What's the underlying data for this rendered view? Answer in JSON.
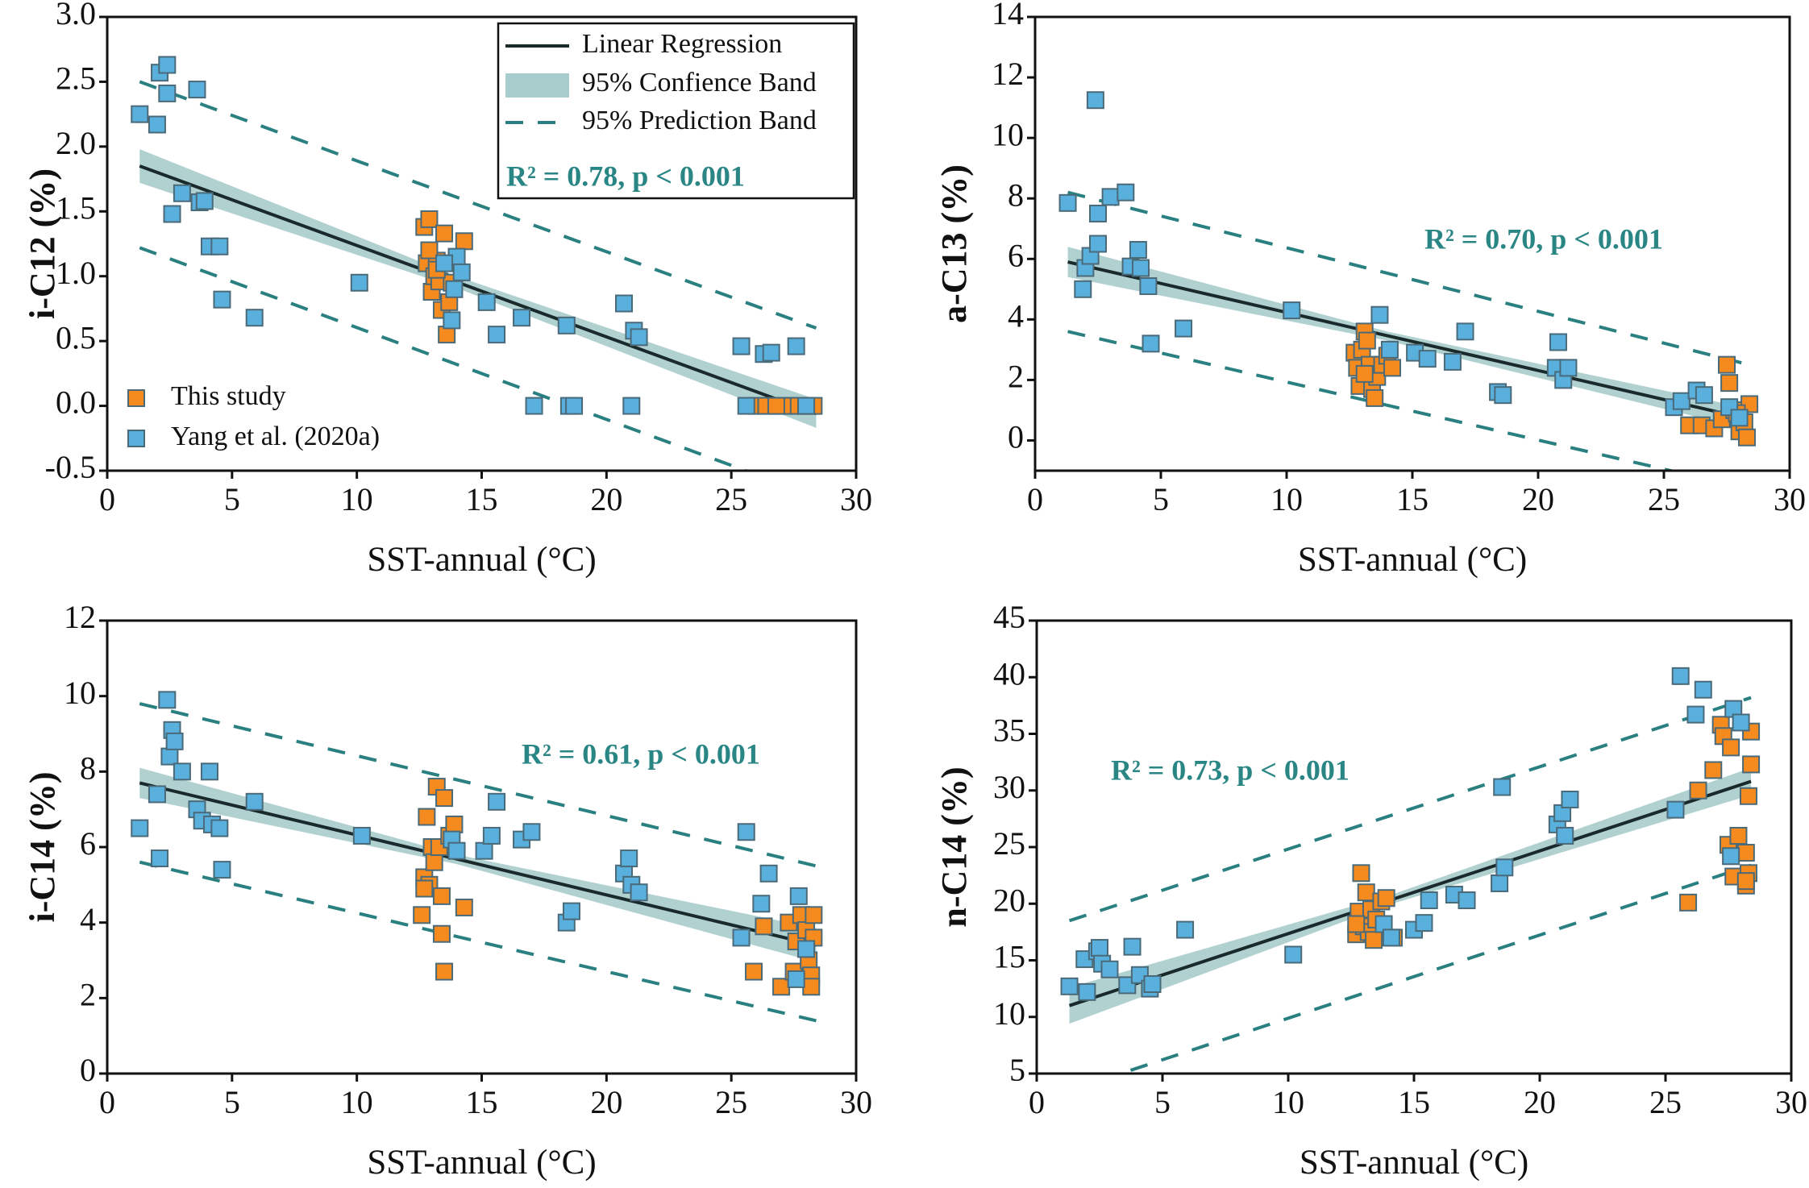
{
  "chart_data": [
    {
      "type": "scatter",
      "xlabel": "SST-annual (°C)",
      "ylabel": "i-C12 (%)",
      "annotation": "R² = 0.78, p < 0.001",
      "xlim": [
        0,
        30
      ],
      "xticks": [
        0,
        5,
        10,
        15,
        20,
        25,
        30
      ],
      "ylim": [
        -0.5,
        3.0
      ],
      "yticks": [
        -0.5,
        {
          "value": 0,
          "label": "0.0"
        },
        0.5,
        {
          "value": 1,
          "label": "1.0"
        },
        1.5,
        {
          "value": 2,
          "label": "2.0"
        },
        2.5,
        {
          "value": 3,
          "label": "3.0"
        }
      ],
      "series": [
        {
          "name": "This study",
          "color": "#f58b1f",
          "x": [
            12.7,
            12.9,
            12.8,
            13.0,
            13.1,
            13.2,
            13.3,
            13.4,
            13.5,
            13.6,
            13.7,
            13.8,
            14.3,
            12.9,
            13.2,
            26.0,
            26.4,
            27.1,
            27.4,
            27.7,
            28.0,
            28.3,
            26.8
          ],
          "values": [
            1.38,
            1.44,
            1.1,
            0.88,
            1.0,
            1.12,
            0.96,
            0.74,
            1.33,
            0.55,
            0.8,
            0.95,
            1.27,
            1.2,
            1.05,
            0,
            0,
            0,
            0,
            0,
            0,
            0,
            0
          ]
        },
        {
          "name": "Yang et al. (2020a)",
          "color": "#5ab0dc",
          "x": [
            1.3,
            2.0,
            2.1,
            2.4,
            2.4,
            3.6,
            2.6,
            3.0,
            3.7,
            3.9,
            4.1,
            4.5,
            4.6,
            5.9,
            10.1,
            13.8,
            14.0,
            14.2,
            15.2,
            15.6,
            16.6,
            17.1,
            18.4,
            18.5,
            18.7,
            20.7,
            21.0,
            21.1,
            21.3,
            25.4,
            25.6,
            26.3,
            26.6,
            27.6,
            28.0,
            13.5,
            13.9
          ],
          "values": [
            2.25,
            2.17,
            2.57,
            2.63,
            2.41,
            2.44,
            1.48,
            1.64,
            1.57,
            1.58,
            1.23,
            1.23,
            0.82,
            0.68,
            0.95,
            0.66,
            1.15,
            1.03,
            0.8,
            0.55,
            0.68,
            0,
            0.62,
            0,
            0,
            0.79,
            0,
            0.58,
            0.53,
            0.46,
            0,
            0.4,
            0.41,
            0.46,
            0,
            1.1,
            0.9
          ]
        }
      ],
      "regression": {
        "name": "Linear Regression",
        "color": "#1a2a2a",
        "x": [
          1.3,
          28.4
        ],
        "values": [
          1.85,
          -0.06
        ]
      },
      "confidence_band": {
        "name": "95% Confience Band",
        "color": "#a9cccc",
        "x": [
          1.3,
          14,
          28.4
        ],
        "lower": [
          1.72,
          0.91,
          -0.17
        ],
        "upper": [
          1.98,
          1.0,
          0.05
        ]
      },
      "prediction_band": {
        "name": "95% Prediction Band",
        "color": "#2a8080",
        "x": [
          1.3,
          28.4
        ],
        "lower": [
          1.22,
          -0.7
        ],
        "upper": [
          2.5,
          0.6
        ]
      }
    },
    {
      "type": "scatter",
      "xlabel": "SST-annual (°C)",
      "ylabel": "a-C13 (%)",
      "annotation": "R² = 0.70, p < 0.001",
      "xlim": [
        0,
        30
      ],
      "xticks": [
        0,
        5,
        10,
        15,
        20,
        25,
        30
      ],
      "ylim": [
        -1,
        14
      ],
      "yticks": [
        0,
        2,
        4,
        6,
        8,
        10,
        12,
        14
      ],
      "series": [
        {
          "color": "#f58b1f",
          "x": [
            12.7,
            12.8,
            12.9,
            13.0,
            13.1,
            13.2,
            13.3,
            13.4,
            13.5,
            13.6,
            13.8,
            14.0,
            14.2,
            13.1,
            26.0,
            26.5,
            27.0,
            27.3,
            27.5,
            27.6,
            27.8,
            28.0,
            28.2,
            28.3,
            28.4,
            27.9
          ],
          "values": [
            2.9,
            2.4,
            1.8,
            3.0,
            3.6,
            3.3,
            2.5,
            1.7,
            1.4,
            2.1,
            2.5,
            2.8,
            2.4,
            2.2,
            0.5,
            0.5,
            0.4,
            0.7,
            2.5,
            1.9,
            1.0,
            0.3,
            0.6,
            0.1,
            1.2,
            0.9
          ]
        },
        {
          "color": "#5ab0dc",
          "x": [
            1.3,
            1.9,
            2.0,
            2.2,
            2.4,
            2.5,
            2.5,
            3.0,
            3.6,
            3.8,
            4.1,
            4.2,
            4.5,
            4.6,
            5.9,
            10.2,
            13.7,
            14.1,
            15.1,
            15.6,
            16.6,
            17.1,
            18.4,
            18.6,
            20.7,
            20.8,
            21.0,
            21.2,
            25.4,
            25.7,
            26.3,
            26.6,
            27.6,
            28.0
          ],
          "values": [
            7.85,
            5.0,
            5.7,
            6.1,
            11.25,
            7.5,
            6.5,
            8.05,
            8.2,
            5.75,
            6.3,
            5.7,
            5.1,
            3.2,
            3.7,
            4.3,
            4.15,
            3.0,
            2.9,
            2.7,
            2.6,
            3.6,
            1.6,
            1.5,
            2.4,
            3.25,
            2.0,
            2.4,
            1.1,
            1.3,
            1.65,
            1.5,
            1.1,
            0.75
          ]
        }
      ],
      "regression": {
        "color": "#1a2a2a",
        "x": [
          1.3,
          28.4
        ],
        "values": [
          5.9,
          0.7
        ]
      },
      "confidence_band": {
        "color": "#a9cccc",
        "x": [
          1.3,
          14,
          28.4
        ],
        "lower": [
          5.4,
          3.3,
          0.35
        ],
        "upper": [
          6.4,
          3.6,
          1.05
        ]
      },
      "prediction_band": {
        "color": "#2a8080",
        "x": [
          1.3,
          28.4
        ],
        "lower": [
          3.6,
          -1.6
        ],
        "upper": [
          8.2,
          2.5
        ]
      }
    },
    {
      "type": "scatter",
      "xlabel": "SST-annual (°C)",
      "ylabel": "i-C14 (%)",
      "annotation": "R² = 0.61, p < 0.001",
      "xlim": [
        0,
        30
      ],
      "xticks": [
        0,
        5,
        10,
        15,
        20,
        25,
        30
      ],
      "ylim": [
        0,
        12
      ],
      "yticks": [
        0,
        2,
        4,
        6,
        8,
        10,
        12
      ],
      "series": [
        {
          "color": "#f58b1f",
          "x": [
            12.6,
            12.7,
            12.8,
            12.9,
            13.0,
            13.1,
            13.2,
            13.3,
            13.4,
            13.4,
            13.5,
            13.5,
            13.7,
            13.9,
            14.3,
            12.7,
            25.9,
            26.3,
            27.0,
            27.3,
            27.5,
            27.6,
            27.8,
            28.0,
            28.1,
            28.2,
            28.3,
            28.2,
            28.3
          ],
          "values": [
            4.2,
            5.2,
            6.8,
            5.0,
            6.0,
            5.6,
            7.6,
            6.0,
            4.7,
            3.7,
            2.7,
            7.3,
            6.3,
            6.6,
            4.4,
            4.9,
            2.7,
            3.9,
            2.3,
            4.0,
            2.7,
            3.5,
            4.2,
            3.8,
            3.0,
            2.6,
            4.2,
            2.3,
            3.6
          ]
        },
        {
          "color": "#5ab0dc",
          "x": [
            1.3,
            2.0,
            2.1,
            2.4,
            2.5,
            2.6,
            2.7,
            3.0,
            3.6,
            3.8,
            4.1,
            4.2,
            4.5,
            4.6,
            5.9,
            10.2,
            13.8,
            14.0,
            15.1,
            15.4,
            15.6,
            16.6,
            17.0,
            18.4,
            18.6,
            20.7,
            20.9,
            21.0,
            21.3,
            25.6,
            25.4,
            26.2,
            26.5,
            27.6,
            27.7,
            28.0
          ],
          "values": [
            6.5,
            7.4,
            5.7,
            9.9,
            8.4,
            9.1,
            8.8,
            8.0,
            7.0,
            6.7,
            8.0,
            6.6,
            6.5,
            5.4,
            7.2,
            6.3,
            6.2,
            5.9,
            5.9,
            6.3,
            7.2,
            6.2,
            6.4,
            4.0,
            4.3,
            5.3,
            5.7,
            5.0,
            4.8,
            6.4,
            3.6,
            4.5,
            5.3,
            2.5,
            4.7,
            3.3
          ]
        }
      ],
      "regression": {
        "color": "#1a2a2a",
        "x": [
          1.3,
          28.4
        ],
        "values": [
          7.7,
          3.4
        ]
      },
      "confidence_band": {
        "color": "#a9cccc",
        "x": [
          1.3,
          14,
          28.4
        ],
        "lower": [
          7.3,
          5.55,
          2.95
        ],
        "upper": [
          8.1,
          5.8,
          3.85
        ]
      },
      "prediction_band": {
        "color": "#2a8080",
        "x": [
          1.3,
          28.4
        ],
        "lower": [
          5.6,
          1.4
        ],
        "upper": [
          9.8,
          5.5
        ]
      }
    },
    {
      "type": "scatter",
      "xlabel": "SST-annual (°C)",
      "ylabel": "n-C14 (%)",
      "annotation": "R² = 0.73, p < 0.001",
      "xlim": [
        0,
        30
      ],
      "xticks": [
        0,
        5,
        10,
        15,
        20,
        25,
        30
      ],
      "ylim": [
        5,
        45
      ],
      "yticks": [
        5,
        10,
        15,
        20,
        25,
        30,
        35,
        40,
        45
      ],
      "series": [
        {
          "color": "#f58b1f",
          "x": [
            12.7,
            12.8,
            12.9,
            13.0,
            13.1,
            13.2,
            13.3,
            13.4,
            13.5,
            13.7,
            13.9,
            14.2,
            12.7,
            25.9,
            26.3,
            26.9,
            27.2,
            27.3,
            27.5,
            27.6,
            27.7,
            27.9,
            28.2,
            28.3,
            28.2,
            28.3,
            28.4,
            28.4,
            28.2
          ],
          "values": [
            17.3,
            19.3,
            22.7,
            18.0,
            21.0,
            17.5,
            19.5,
            16.8,
            18.6,
            20.2,
            20.5,
            17.0,
            18.2,
            20.1,
            30.0,
            31.8,
            35.8,
            34.8,
            25.2,
            33.8,
            22.4,
            26.0,
            21.6,
            22.7,
            24.5,
            29.5,
            35.2,
            32.3,
            22.0
          ]
        },
        {
          "color": "#5ab0dc",
          "x": [
            1.3,
            1.9,
            2.0,
            2.4,
            2.5,
            2.6,
            2.9,
            3.6,
            3.8,
            4.1,
            4.5,
            4.6,
            5.9,
            10.2,
            13.8,
            14.1,
            15.0,
            15.4,
            15.6,
            16.6,
            17.1,
            18.4,
            18.6,
            18.5,
            20.7,
            20.9,
            21.0,
            21.2,
            25.4,
            25.6,
            26.2,
            26.5,
            27.6,
            27.7,
            28.0
          ],
          "values": [
            12.7,
            15.1,
            12.2,
            15.8,
            16.1,
            14.7,
            14.2,
            12.8,
            16.2,
            13.7,
            12.5,
            12.9,
            17.7,
            15.5,
            18.2,
            17.0,
            17.7,
            18.3,
            20.3,
            20.8,
            20.3,
            21.8,
            23.2,
            30.3,
            27.0,
            28.0,
            26.0,
            29.2,
            28.3,
            40.1,
            36.7,
            38.9,
            24.2,
            37.2,
            36.0
          ]
        }
      ],
      "regression": {
        "color": "#1a2a2a",
        "x": [
          1.3,
          28.4
        ],
        "values": [
          11.0,
          30.8
        ]
      },
      "confidence_band": {
        "color": "#a9cccc",
        "x": [
          1.3,
          14,
          28.4
        ],
        "lower": [
          9.4,
          19.9,
          29.6
        ],
        "upper": [
          12.6,
          20.7,
          32.0
        ]
      },
      "prediction_band": {
        "color": "#2a8080",
        "x": [
          1.3,
          28.4
        ],
        "lower": [
          3.5,
          23.4
        ],
        "upper": [
          18.5,
          38.2
        ]
      }
    }
  ]
}
